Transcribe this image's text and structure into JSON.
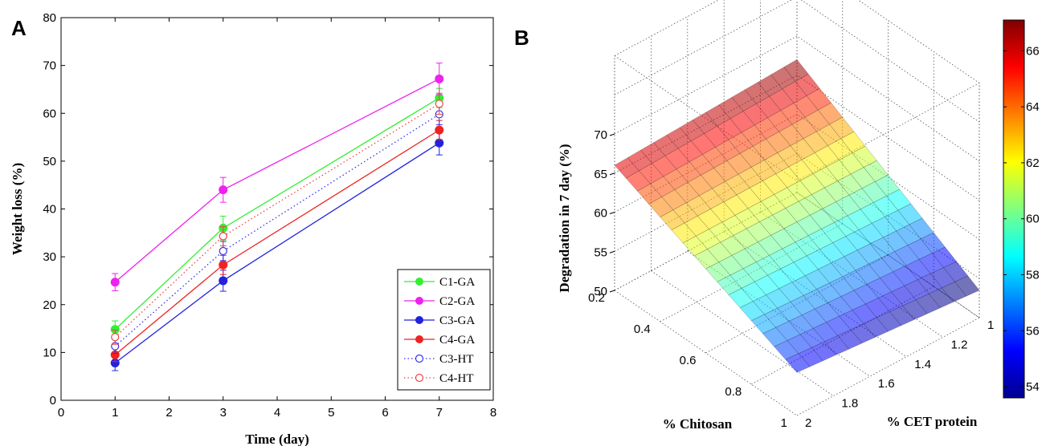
{
  "panels": {
    "a_label": "A",
    "b_label": "B"
  },
  "chart_data": [
    {
      "type": "line",
      "title": "",
      "xlabel": "Time (day)",
      "ylabel": "Weight loss (%)",
      "xlim": [
        0,
        8
      ],
      "ylim": [
        0,
        80
      ],
      "xticks": [
        "0",
        "1",
        "2",
        "3",
        "4",
        "5",
        "6",
        "7",
        "8"
      ],
      "yticks": [
        "0",
        "10",
        "20",
        "30",
        "40",
        "50",
        "60",
        "70",
        "80"
      ],
      "grid": false,
      "legend_position": "bottom-right",
      "x": [
        1,
        3,
        7
      ],
      "series": [
        {
          "name": "C1-GA",
          "values": [
            14.8,
            36.0,
            63.2
          ],
          "errors": [
            1.8,
            2.5,
            2.0
          ],
          "color": "#33ee33",
          "style": "solid",
          "marker": "filled"
        },
        {
          "name": "C2-GA",
          "values": [
            24.7,
            44.0,
            67.2
          ],
          "errors": [
            1.8,
            2.6,
            3.3
          ],
          "color": "#ee22ee",
          "style": "solid",
          "marker": "filled"
        },
        {
          "name": "C3-GA",
          "values": [
            7.8,
            25.0,
            53.8
          ],
          "errors": [
            1.6,
            2.2,
            2.5
          ],
          "color": "#2222dd",
          "style": "solid",
          "marker": "filled"
        },
        {
          "name": "C4-GA",
          "values": [
            9.5,
            28.3,
            56.5
          ],
          "errors": [
            1.4,
            2.0,
            2.0
          ],
          "color": "#ee2222",
          "style": "solid",
          "marker": "filled"
        },
        {
          "name": "C3-HT",
          "values": [
            11.3,
            31.2,
            59.8
          ],
          "errors": [
            1.5,
            2.0,
            2.2
          ],
          "color": "#3333ee",
          "style": "dotted",
          "marker": "open"
        },
        {
          "name": "C4-HT",
          "values": [
            13.2,
            34.3,
            62.0
          ],
          "errors": [
            1.5,
            2.0,
            2.2
          ],
          "color": "#ee4444",
          "style": "dotted",
          "marker": "open"
        }
      ]
    },
    {
      "type": "surface",
      "title": "",
      "xlabel": "% Chitosan",
      "ylabel": "% CET protein",
      "zlabel": "Degradation in 7 day (%)",
      "xlim": [
        0.2,
        1
      ],
      "ylim": [
        1,
        2
      ],
      "zlim": [
        50,
        70
      ],
      "xticks": [
        "0.2",
        "0.4",
        "0.6",
        "0.8",
        "1"
      ],
      "yticks": [
        "1",
        "1.2",
        "1.4",
        "1.6",
        "1.8",
        "2"
      ],
      "zticks": [
        "50",
        "55",
        "60",
        "65",
        "70"
      ],
      "grid": true,
      "corner_values": {
        "chitosan_0.2_cet_2": 66.0,
        "chitosan_0.2_cet_1": 67.0,
        "chitosan_1_cet_1": 53.5,
        "chitosan_1_cet_2": 55.5
      },
      "colorbar": {
        "min": 54,
        "max": 67,
        "ticks": [
          "54",
          "56",
          "58",
          "60",
          "62",
          "64",
          "66"
        ],
        "position": "right",
        "colormap": "jet"
      }
    }
  ]
}
